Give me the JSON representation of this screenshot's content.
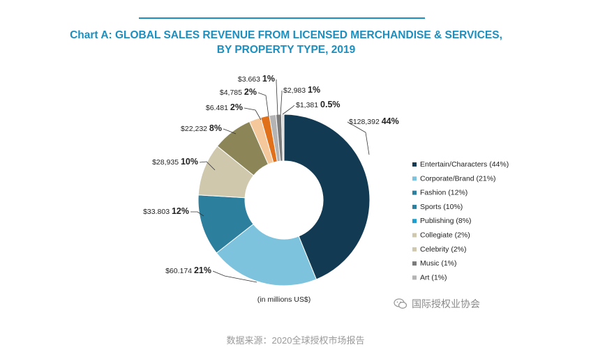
{
  "title_line1": "Chart A: GLOBAL SALES REVENUE FROM LICENSED MERCHANDISE & SERVICES,",
  "title_line2": "BY PROPERTY TYPE, 2019",
  "unit_note": "(in millions US$)",
  "source": "数据来源：2020全球授权市场报告",
  "watermark": "国际授权业协会",
  "chart_data": {
    "type": "pie",
    "donut": true,
    "slices": [
      {
        "legend": "Entertain/Characters (44%)",
        "value": 128392,
        "value_label": "$128,392",
        "pct_label": "44%",
        "color": "#123a52"
      },
      {
        "legend": "Corporate/Brand (21%)",
        "value": 60174,
        "value_label": "$60.174",
        "pct_label": "21%",
        "color": "#7ec3dd"
      },
      {
        "legend": "Fashion (12%)",
        "value": 33803,
        "value_label": "$33.803",
        "pct_label": "12%",
        "color": "#2d7f9e"
      },
      {
        "legend": "Sports (10%)",
        "value": 28935,
        "value_label": "$28,935",
        "pct_label": "10%",
        "color": "#cfc8ad"
      },
      {
        "legend": "Publishing (8%)",
        "value": 22232,
        "value_label": "$22,232",
        "pct_label": "8%",
        "color": "#8c8557"
      },
      {
        "legend": "Collegiate (2%)",
        "value": 6481,
        "value_label": "$6.481",
        "pct_label": "2%",
        "color": "#f5c89c"
      },
      {
        "legend": "Celebrity (2%)",
        "value": 4785,
        "value_label": "$4,785",
        "pct_label": "2%",
        "color": "#e0701a"
      },
      {
        "legend": "Music (1%)",
        "value": 3663,
        "value_label": "$3.663",
        "pct_label": "1%",
        "color": "#b4b4b4"
      },
      {
        "legend": "Art (1%)",
        "value": 2983,
        "value_label": "$2,983",
        "pct_label": "1%",
        "color": "#7b7b7b"
      },
      {
        "value": 1381,
        "value_label": "$1,381",
        "pct_label": "0.5%",
        "color": "#d9d9d9"
      }
    ],
    "legend_colors": [
      "#123a52",
      "#7ec3dd",
      "#2d7f9e",
      "#2d7f9e",
      "#1b9fd0",
      "#cfc8ad",
      "#cfc8ad",
      "#7b7b7b",
      "#b4b4b4"
    ],
    "legend_position": "right"
  }
}
